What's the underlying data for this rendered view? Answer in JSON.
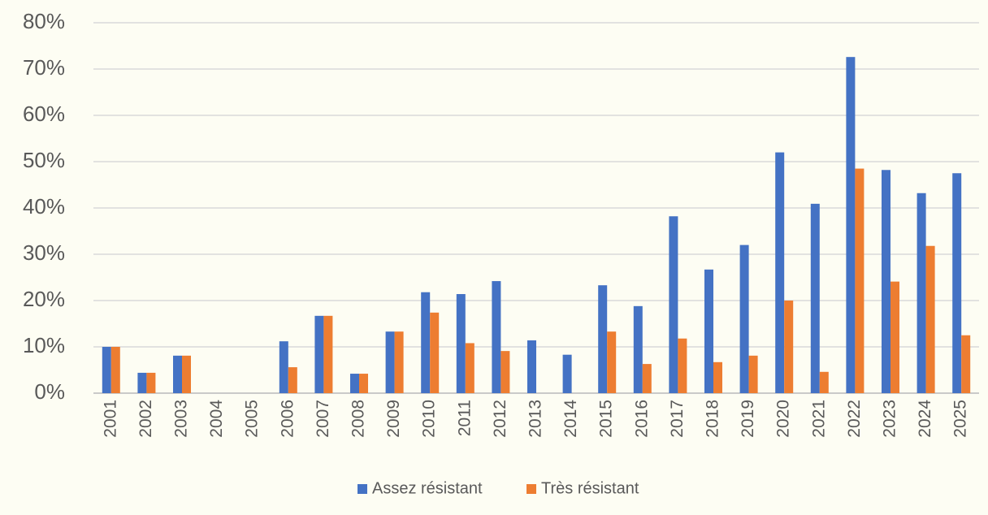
{
  "chart_data": {
    "type": "bar",
    "categories": [
      "2001",
      "2002",
      "2003",
      "2004",
      "2005",
      "2006",
      "2007",
      "2008",
      "2009",
      "2010",
      "2011",
      "2012",
      "2013",
      "2014",
      "2015",
      "2016",
      "2017",
      "2018",
      "2019",
      "2020",
      "2021",
      "2022",
      "2023",
      "2024",
      "2025"
    ],
    "series": [
      {
        "name": "Assez résistant",
        "color": "#4472c4",
        "values": [
          10,
          4.4,
          8.1,
          0,
          0,
          11.2,
          16.7,
          4.2,
          13.3,
          21.8,
          21.4,
          24.2,
          11.4,
          8.3,
          23.3,
          18.8,
          38.2,
          26.7,
          32,
          52,
          40.9,
          72.6,
          48.2,
          43.2,
          47.5
        ]
      },
      {
        "name": "Très résistant",
        "color": "#ed7d31",
        "values": [
          10,
          4.4,
          8.1,
          0,
          0,
          5.6,
          16.7,
          4.2,
          13.3,
          17.4,
          10.8,
          9.1,
          0,
          0,
          13.3,
          6.3,
          11.8,
          6.7,
          8.1,
          20,
          4.6,
          48.5,
          24.1,
          31.8,
          12.5
        ]
      }
    ],
    "ylim": [
      0,
      80
    ],
    "yticks": [
      {
        "value": 0,
        "label": "0%"
      },
      {
        "value": 10,
        "label": "10%"
      },
      {
        "value": 20,
        "label": "20%"
      },
      {
        "value": 30,
        "label": "30%"
      },
      {
        "value": 40,
        "label": "40%"
      },
      {
        "value": 50,
        "label": "50%"
      },
      {
        "value": 60,
        "label": "60%"
      },
      {
        "value": 70,
        "label": "70%"
      },
      {
        "value": 80,
        "label": "80%"
      }
    ],
    "grid": true,
    "legend": "bottom"
  }
}
